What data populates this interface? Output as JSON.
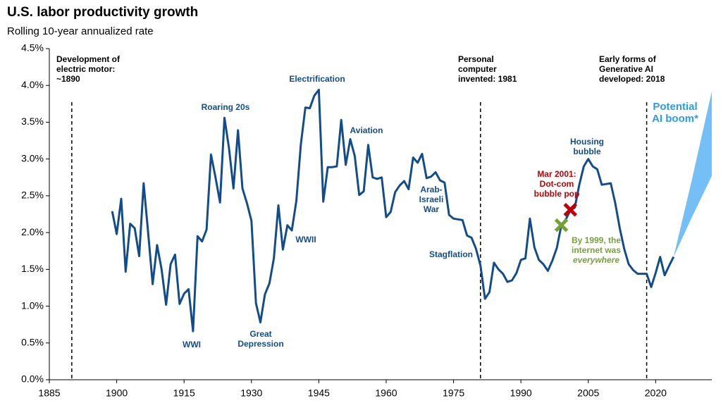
{
  "chart_data": {
    "type": "line",
    "title": "U.S. labor productivity growth",
    "subtitle": "Rolling 10-year annualized rate",
    "xlim": [
      1885,
      2032.5
    ],
    "xticks": [
      1885,
      1900,
      1915,
      1930,
      1945,
      1960,
      1975,
      1990,
      2005,
      2020
    ],
    "ylim": [
      0,
      4.5
    ],
    "yticks": [
      {
        "value": 0,
        "label": "0.0%"
      },
      {
        "value": 0.5,
        "label": "0.5%"
      },
      {
        "value": 1,
        "label": "1.0%"
      },
      {
        "value": 1.5,
        "label": "1.5%"
      },
      {
        "value": 2,
        "label": "2.0%"
      },
      {
        "value": 2.5,
        "label": "2.5%"
      },
      {
        "value": 3,
        "label": "3.0%"
      },
      {
        "value": 3.5,
        "label": "3.5%"
      },
      {
        "value": 4,
        "label": "4.0%"
      },
      {
        "value": 4.5,
        "label": "4.5%"
      }
    ],
    "x": [
      1899,
      1900,
      1901,
      1902,
      1903,
      1904,
      1905,
      1906,
      1907,
      1908,
      1909,
      1910,
      1911,
      1912,
      1913,
      1914,
      1915,
      1916,
      1917,
      1918,
      1919,
      1920,
      1921,
      1922,
      1923,
      1924,
      1925,
      1926,
      1927,
      1928,
      1929,
      1930,
      1931,
      1932,
      1933,
      1934,
      1935,
      1936,
      1937,
      1938,
      1939,
      1940,
      1941,
      1942,
      1943,
      1944,
      1945,
      1946,
      1947,
      1948,
      1949,
      1950,
      1951,
      1952,
      1953,
      1954,
      1955,
      1956,
      1957,
      1958,
      1959,
      1960,
      1961,
      1962,
      1963,
      1964,
      1965,
      1966,
      1967,
      1968,
      1969,
      1970,
      1971,
      1972,
      1973,
      1974,
      1975,
      1976,
      1977,
      1978,
      1979,
      1980,
      1981,
      1982,
      1983,
      1984,
      1985,
      1986,
      1987,
      1988,
      1989,
      1990,
      1991,
      1992,
      1993,
      1994,
      1995,
      1996,
      1997,
      1998,
      1999,
      2000,
      2001,
      2002,
      2003,
      2004,
      2005,
      2006,
      2007,
      2008,
      2009,
      2010,
      2011,
      2012,
      2013,
      2014,
      2015,
      2016,
      2017,
      2018,
      2019,
      2020,
      2021,
      2022,
      2023,
      2024
    ],
    "series": [
      {
        "color": "#124d8a",
        "values": [
          2.29,
          1.98,
          2.46,
          1.47,
          2.12,
          2.06,
          1.68,
          2.67,
          2.0,
          1.3,
          1.83,
          1.5,
          1.02,
          1.57,
          1.7,
          1.03,
          1.17,
          1.23,
          0.66,
          1.95,
          1.88,
          2.04,
          3.06,
          2.75,
          2.41,
          3.56,
          3.15,
          2.6,
          3.39,
          2.6,
          2.4,
          2.16,
          1.04,
          0.78,
          1.16,
          1.31,
          1.65,
          2.37,
          1.77,
          2.1,
          2.03,
          2.43,
          3.2,
          3.7,
          3.69,
          3.86,
          3.94,
          2.42,
          2.89,
          2.89,
          2.9,
          3.53,
          2.92,
          3.27,
          3.04,
          2.51,
          2.56,
          3.19,
          2.75,
          2.73,
          2.75,
          2.21,
          2.28,
          2.55,
          2.64,
          2.7,
          2.59,
          3.02,
          2.95,
          3.07,
          2.74,
          2.76,
          2.82,
          2.71,
          2.68,
          2.24,
          2.19,
          2.18,
          2.17,
          1.96,
          1.93,
          1.78,
          1.55,
          1.1,
          1.19,
          1.59,
          1.5,
          1.44,
          1.33,
          1.35,
          1.45,
          1.63,
          1.65,
          2.19,
          1.8,
          1.63,
          1.57,
          1.48,
          1.62,
          1.79,
          2.1,
          2.18,
          2.3,
          2.34,
          2.65,
          2.9,
          3.0,
          2.9,
          2.86,
          2.65,
          2.66,
          2.67,
          2.4,
          2.06,
          1.78,
          1.57,
          1.49,
          1.44,
          1.44,
          1.44,
          1.26,
          1.45,
          1.67,
          1.42,
          1.55,
          1.67
        ]
      }
    ],
    "projection": {
      "lines": [
        "Potential",
        "AI boom*"
      ],
      "color": "#74bff5",
      "label_color": "#2a9ce8",
      "x": [
        2024,
        2028,
        2032.5
      ],
      "high": [
        1.67,
        2.7,
        3.92
      ],
      "low": [
        1.67,
        2.2,
        2.77
      ]
    },
    "event_lines": [
      1890,
      1981,
      2018
    ],
    "markers": [
      {
        "x": 2001,
        "y": 2.31,
        "color": "#c00000"
      },
      {
        "x": 1999,
        "y": 2.1,
        "color": "#77a03a"
      }
    ],
    "annotations": [
      {
        "lines": [
          "Development of",
          "electric motor:",
          "~1890"
        ]
      },
      {
        "lines": [
          "Personal",
          "computer",
          "invented: 1981"
        ]
      },
      {
        "lines": [
          "Early forms of",
          "Generative AI",
          "developed: 2018"
        ]
      },
      {
        "lines": [
          "Roaring 20s"
        ]
      },
      {
        "lines": [
          "Electrification"
        ]
      },
      {
        "lines": [
          "Aviation"
        ]
      },
      {
        "lines": [
          "Housing",
          "bubble"
        ]
      },
      {
        "lines": [
          "Arab-",
          "Israeli",
          "War"
        ]
      },
      {
        "lines": [
          "WWII"
        ]
      },
      {
        "lines": [
          "Stagflation"
        ]
      },
      {
        "lines": [
          "WWI"
        ]
      },
      {
        "lines": [
          "Great",
          "Depression"
        ]
      },
      {
        "lines": [
          "Mar 2001:",
          "Dot-com",
          "bubble pop"
        ]
      },
      {
        "lines": [
          "By 1999, the",
          "internet was",
          "everywhere"
        ]
      }
    ]
  }
}
